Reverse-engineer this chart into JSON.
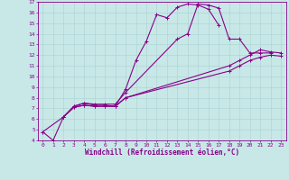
{
  "xlabel": "Windchill (Refroidissement éolien,°C)",
  "bg_color": "#c8e8e8",
  "grid_color": "#b0d4d4",
  "line_color": "#880088",
  "xlim": [
    -0.5,
    23.5
  ],
  "ylim": [
    4,
    17
  ],
  "xticks": [
    0,
    1,
    2,
    3,
    4,
    5,
    6,
    7,
    8,
    9,
    10,
    11,
    12,
    13,
    14,
    15,
    16,
    17,
    18,
    19,
    20,
    21,
    22,
    23
  ],
  "yticks": [
    4,
    5,
    6,
    7,
    8,
    9,
    10,
    11,
    12,
    13,
    14,
    15,
    16,
    17
  ],
  "lines": [
    {
      "x": [
        0,
        1,
        2,
        3,
        4,
        5,
        6,
        7,
        8,
        9,
        10,
        11,
        12,
        13,
        14,
        15,
        16,
        17
      ],
      "y": [
        4.8,
        4.0,
        6.2,
        7.2,
        7.5,
        7.3,
        7.3,
        7.2,
        8.8,
        11.5,
        13.3,
        15.8,
        15.5,
        16.5,
        16.8,
        16.7,
        16.3,
        14.8
      ]
    },
    {
      "x": [
        0,
        2,
        3,
        4,
        5,
        6,
        7,
        8,
        13,
        14,
        15,
        16,
        17,
        18,
        19,
        20,
        21,
        22
      ],
      "y": [
        4.8,
        6.2,
        7.2,
        7.5,
        7.4,
        7.4,
        7.4,
        8.5,
        13.5,
        14.0,
        16.8,
        16.7,
        16.4,
        13.5,
        13.5,
        12.2,
        12.2,
        12.2
      ]
    },
    {
      "x": [
        2,
        3,
        4,
        5,
        6,
        7,
        8,
        18,
        19,
        20,
        21,
        22,
        23
      ],
      "y": [
        6.2,
        7.1,
        7.3,
        7.2,
        7.2,
        7.2,
        8.0,
        11.0,
        11.5,
        12.0,
        12.5,
        12.3,
        12.2
      ]
    },
    {
      "x": [
        2,
        3,
        4,
        5,
        6,
        7,
        8,
        18,
        19,
        20,
        21,
        22,
        23
      ],
      "y": [
        6.2,
        7.1,
        7.3,
        7.2,
        7.2,
        7.2,
        8.0,
        10.5,
        11.0,
        11.5,
        11.8,
        12.0,
        11.9
      ]
    }
  ]
}
